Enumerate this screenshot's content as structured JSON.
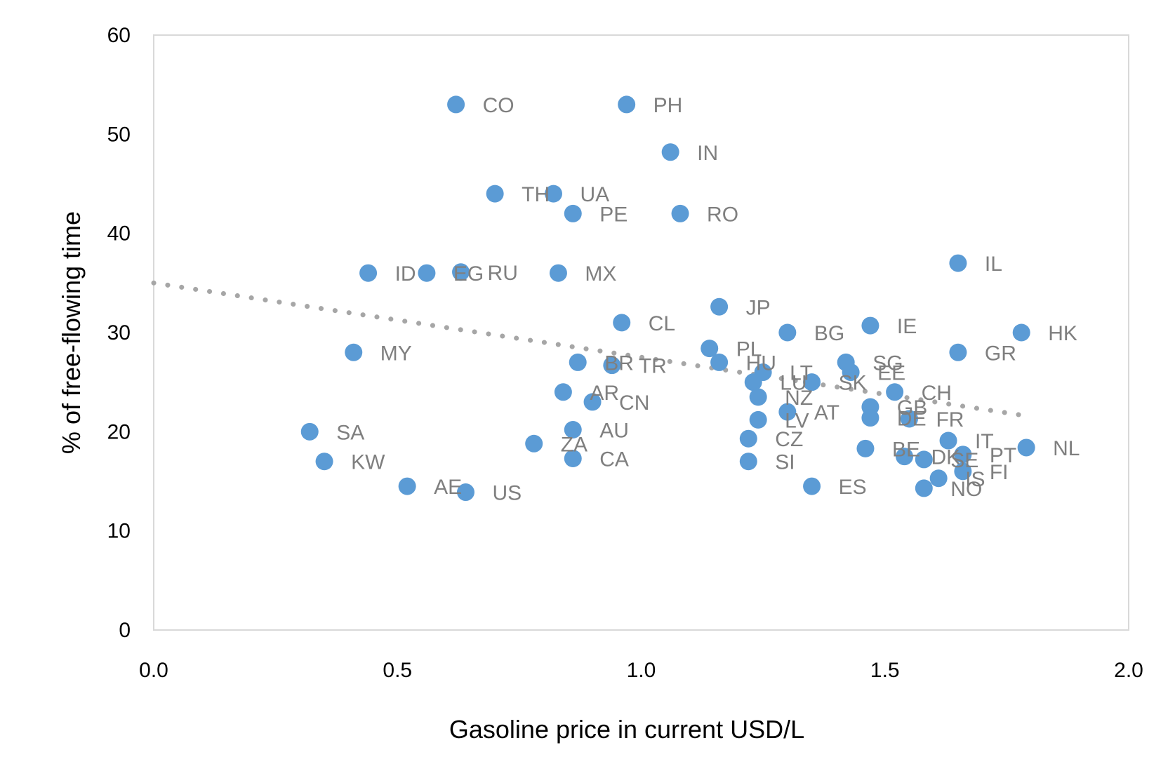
{
  "chart_data": {
    "type": "scatter",
    "title": "",
    "xlabel": "Gasoline price in current USD/L",
    "ylabel": "% of free-flowing time",
    "xlim": [
      0.0,
      2.0
    ],
    "ylim": [
      0,
      60
    ],
    "x_ticks": [
      "0.0",
      "0.5",
      "1.0",
      "1.5",
      "2.0"
    ],
    "y_ticks": [
      "0",
      "10",
      "20",
      "30",
      "40",
      "50",
      "60"
    ],
    "grid": false,
    "legend": "none",
    "colors": {
      "marker": "#5b9bd5",
      "label": "#7f7f7f",
      "trendline": "#a6a6a6",
      "axis": "#d9d9d9"
    },
    "trendline": {
      "type": "linear",
      "style": "dotted",
      "points": [
        {
          "x": 0.0,
          "y": 35.0
        },
        {
          "x": 1.79,
          "y": 21.6
        }
      ]
    },
    "points": [
      {
        "label": "CO",
        "x": 0.62,
        "y": 53.0
      },
      {
        "label": "PH",
        "x": 0.97,
        "y": 53.0
      },
      {
        "label": "IN",
        "x": 1.06,
        "y": 48.2
      },
      {
        "label": "TH",
        "x": 0.7,
        "y": 44.0
      },
      {
        "label": "UA",
        "x": 0.82,
        "y": 44.0
      },
      {
        "label": "PE",
        "x": 0.86,
        "y": 42.0
      },
      {
        "label": "RO",
        "x": 1.08,
        "y": 42.0
      },
      {
        "label": "IL",
        "x": 1.65,
        "y": 37.0
      },
      {
        "label": "ID",
        "x": 0.44,
        "y": 36.0
      },
      {
        "label": "EG",
        "x": 0.56,
        "y": 36.0
      },
      {
        "label": "RU",
        "x": 0.63,
        "y": 36.1
      },
      {
        "label": "MX",
        "x": 0.83,
        "y": 36.0
      },
      {
        "label": "JP",
        "x": 1.16,
        "y": 32.6
      },
      {
        "label": "CL",
        "x": 0.96,
        "y": 31.0
      },
      {
        "label": "IE",
        "x": 1.47,
        "y": 30.7
      },
      {
        "label": "BG",
        "x": 1.3,
        "y": 30.0
      },
      {
        "label": "HK",
        "x": 1.78,
        "y": 30.0
      },
      {
        "label": "MY",
        "x": 0.41,
        "y": 28.0
      },
      {
        "label": "GR",
        "x": 1.65,
        "y": 28.0
      },
      {
        "label": "PL",
        "x": 1.14,
        "y": 28.4
      },
      {
        "label": "HU",
        "x": 1.16,
        "y": 27.0
      },
      {
        "label": "BR",
        "x": 0.87,
        "y": 27.0
      },
      {
        "label": "TR",
        "x": 0.94,
        "y": 26.7
      },
      {
        "label": "SG",
        "x": 1.42,
        "y": 27.0
      },
      {
        "label": "LT",
        "x": 1.25,
        "y": 26.0
      },
      {
        "label": "EE",
        "x": 1.43,
        "y": 26.0
      },
      {
        "label": "LU",
        "x": 1.23,
        "y": 25.0
      },
      {
        "label": "SK",
        "x": 1.35,
        "y": 25.0
      },
      {
        "label": "CH",
        "x": 1.52,
        "y": 24.0
      },
      {
        "label": "AR",
        "x": 0.84,
        "y": 24.0
      },
      {
        "label": "CN",
        "x": 0.9,
        "y": 23.0
      },
      {
        "label": "NZ",
        "x": 1.24,
        "y": 23.5
      },
      {
        "label": "GB",
        "x": 1.47,
        "y": 22.5
      },
      {
        "label": "AT",
        "x": 1.3,
        "y": 22.0
      },
      {
        "label": "LV",
        "x": 1.24,
        "y": 21.2
      },
      {
        "label": "DE",
        "x": 1.47,
        "y": 21.4
      },
      {
        "label": "FR",
        "x": 1.55,
        "y": 21.3
      },
      {
        "label": "SA",
        "x": 0.32,
        "y": 20.0
      },
      {
        "label": "AU",
        "x": 0.86,
        "y": 20.2
      },
      {
        "label": "CZ",
        "x": 1.22,
        "y": 19.3
      },
      {
        "label": "IT",
        "x": 1.63,
        "y": 19.1
      },
      {
        "label": "ZA",
        "x": 0.78,
        "y": 18.8
      },
      {
        "label": "NL",
        "x": 1.79,
        "y": 18.4
      },
      {
        "label": "BE",
        "x": 1.46,
        "y": 18.3
      },
      {
        "label": "PT",
        "x": 1.66,
        "y": 17.7
      },
      {
        "label": "DK",
        "x": 1.54,
        "y": 17.5
      },
      {
        "label": "SE",
        "x": 1.58,
        "y": 17.2
      },
      {
        "label": "KW",
        "x": 0.35,
        "y": 17.0
      },
      {
        "label": "CA",
        "x": 0.86,
        "y": 17.3
      },
      {
        "label": "SI",
        "x": 1.22,
        "y": 17.0
      },
      {
        "label": "FI",
        "x": 1.66,
        "y": 16.0
      },
      {
        "label": "IS",
        "x": 1.61,
        "y": 15.3
      },
      {
        "label": "AE",
        "x": 0.52,
        "y": 14.5
      },
      {
        "label": "ES",
        "x": 1.35,
        "y": 14.5
      },
      {
        "label": "NO",
        "x": 1.58,
        "y": 14.3
      },
      {
        "label": "US",
        "x": 0.64,
        "y": 13.9
      }
    ]
  }
}
